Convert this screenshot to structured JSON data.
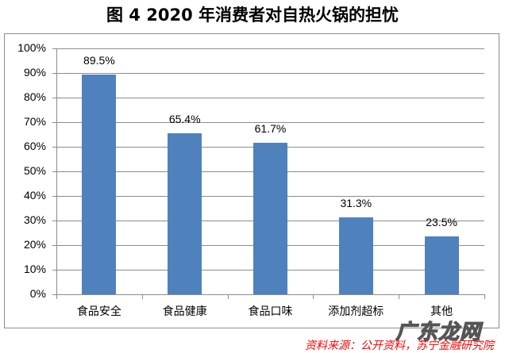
{
  "title": "图 4  2020 年消费者对自热火锅的担忧",
  "source": "资料来源：公开资料，苏宁金融研究院",
  "watermark": "广东龙网",
  "colors": {
    "bar": "#4f81bd",
    "grid": "#8c8c8c",
    "source_text": "#ff0000"
  },
  "y_ticks": [
    "0%",
    "10%",
    "20%",
    "30%",
    "40%",
    "50%",
    "60%",
    "70%",
    "80%",
    "90%",
    "100%"
  ],
  "chart_data": {
    "type": "bar",
    "title": "图 4  2020 年消费者对自热火锅的担忧",
    "categories": [
      "食品安全",
      "食品健康",
      "食品口味",
      "添加剂超标",
      "其他"
    ],
    "values": [
      89.5,
      65.4,
      61.7,
      31.3,
      23.5
    ],
    "value_labels": [
      "89.5%",
      "65.4%",
      "61.7%",
      "31.3%",
      "23.5%"
    ],
    "xlabel": "",
    "ylabel": "",
    "ylim": [
      0,
      100
    ],
    "y_tick_format": "percent",
    "grid": true,
    "legend": null,
    "source": "资料来源：公开资料，苏宁金融研究院"
  }
}
